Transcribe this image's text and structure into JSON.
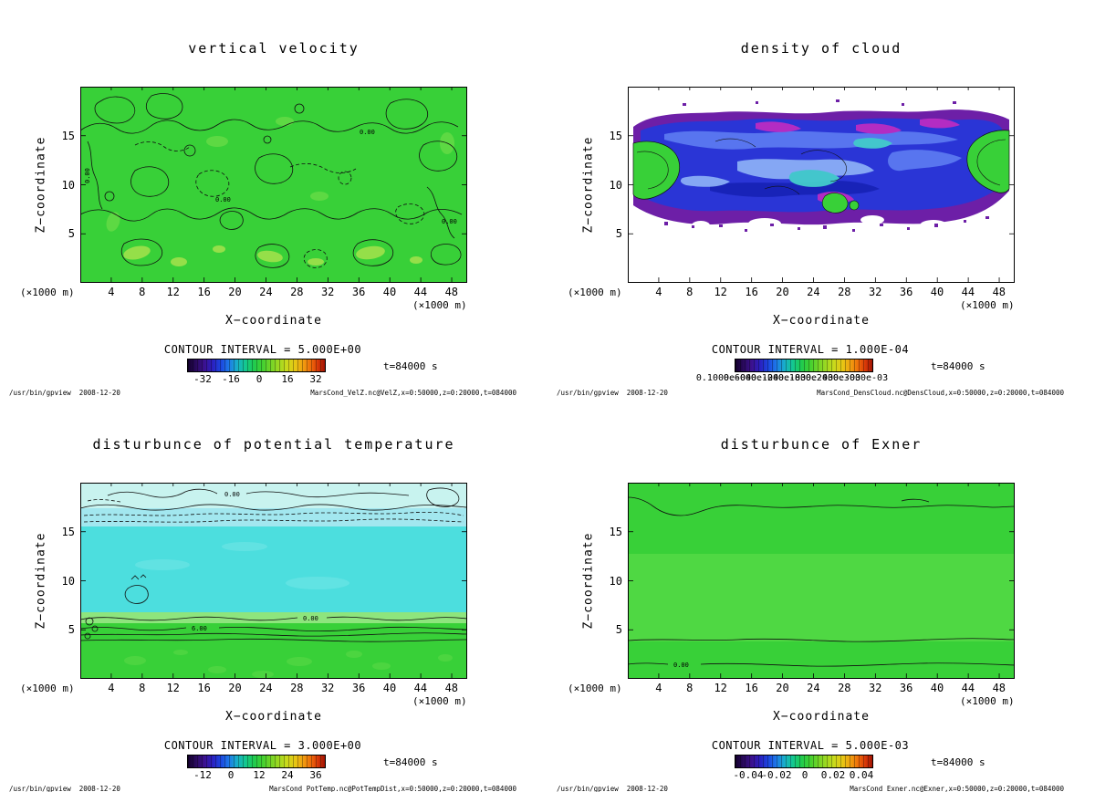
{
  "app": {
    "name": "gpview output",
    "stamp": "/usr/bin/gpview  2008-12-20"
  },
  "palette": {
    "background": "#ffffff",
    "field_green": "#38d038",
    "field_green_light": "#a6e24c",
    "field_cyan": "#4cdede",
    "field_pale_cyan": "#c8f3ef",
    "cloud_purple": "#6d1fa7",
    "cloud_blue": "#2a35d6",
    "cloud_light_blue": "#5d7df2",
    "cloud_magenta": "#c22cc2",
    "contour_black": "#101010",
    "colorbar_gradient": [
      "#14002e",
      "#2a20c0",
      "#1e7ae8",
      "#14c890",
      "#3ed032",
      "#9cd822",
      "#e6c814",
      "#ee6a0a",
      "#a01404"
    ]
  },
  "panels": [
    {
      "title": "vertical velocity",
      "y_label": "Z−coordinate",
      "x_label": "X−coordinate",
      "unit_left": "(×1000 m)",
      "unit_right": "(×1000 m)",
      "y_ticks": [
        "15",
        "10",
        "5"
      ],
      "x_ticks": [
        "4",
        "8",
        "12",
        "16",
        "20",
        "24",
        "28",
        "32",
        "36",
        "40",
        "44",
        "48"
      ],
      "contour_interval_label": "CONTOUR INTERVAL = 5.000E+00",
      "colorbar_labels": [
        "-32",
        "-16",
        "0",
        "16",
        "32"
      ],
      "time_label": "t=84000 s",
      "contour_labels": [
        "0.00",
        "0.00",
        "0.00",
        "0.00"
      ],
      "footer_left": "/usr/bin/gpview  2008-12-20",
      "footer_right": "MarsCond_VelZ.nc@VelZ,x=0:50000,z=0:20000,t=084000"
    },
    {
      "title": "density of cloud",
      "y_label": "Z−coordinate",
      "x_label": "X−coordinate",
      "unit_left": "(×1000 m)",
      "unit_right": "(×1000 m)",
      "y_ticks": [
        "15",
        "10",
        "5"
      ],
      "x_ticks": [
        "4",
        "8",
        "12",
        "16",
        "20",
        "24",
        "28",
        "32",
        "36",
        "40",
        "44",
        "48"
      ],
      "contour_interval_label": "CONTOUR INTERVAL = 1.000E-04",
      "colorbar_labels": [
        "0.1000e-04",
        "0.6000e-04",
        "0.1200e-03",
        "0.1800e-03",
        "0.2400e-03",
        "0.3000e-03"
      ],
      "time_label": "t=84000 s",
      "contour_labels": [],
      "footer_left": "/usr/bin/gpview  2008-12-20",
      "footer_right": "MarsCond_DensCloud.nc@DensCloud,x=0:50000,z=0:20000,t=084000"
    },
    {
      "title": "disturbunce of potential temperature",
      "y_label": "Z−coordinate",
      "x_label": "X−coordinate",
      "unit_left": "(×1000 m)",
      "unit_right": "(×1000 m)",
      "y_ticks": [
        "15",
        "10",
        "5"
      ],
      "x_ticks": [
        "4",
        "8",
        "12",
        "16",
        "20",
        "24",
        "28",
        "32",
        "36",
        "40",
        "44",
        "48"
      ],
      "contour_interval_label": "CONTOUR INTERVAL = 3.000E+00",
      "colorbar_labels": [
        "-12",
        "0",
        "12",
        "24",
        "36"
      ],
      "time_label": "t=84000 s",
      "contour_labels": [
        "0.00",
        "0.00",
        "6.00"
      ],
      "footer_left": "/usr/bin/gpview  2008-12-20",
      "footer_right": "MarsCond_PotTemp.nc@PotTempDist,x=0:50000,z=0:20000,t=084000"
    },
    {
      "title": "disturbunce of Exner",
      "y_label": "Z−coordinate",
      "x_label": "X−coordinate",
      "unit_left": "(×1000 m)",
      "unit_right": "(×1000 m)",
      "y_ticks": [
        "15",
        "10",
        "5"
      ],
      "x_ticks": [
        "4",
        "8",
        "12",
        "16",
        "20",
        "24",
        "28",
        "32",
        "36",
        "40",
        "44",
        "48"
      ],
      "contour_interval_label": "CONTOUR INTERVAL = 5.000E-03",
      "colorbar_labels": [
        "-0.04",
        "-0.02",
        "0",
        "0.02",
        "0.04"
      ],
      "time_label": "t=84000 s",
      "contour_labels": [
        "0.00"
      ],
      "footer_left": "/usr/bin/gpview  2008-12-20",
      "footer_right": "MarsCond_Exner.nc@Exner,x=0:50000,z=0:20000,t=084000"
    }
  ],
  "chart_data": [
    {
      "type": "heatmap",
      "panel": "top-left",
      "title": "vertical velocity",
      "xlabel": "X-coordinate (×1000 m)",
      "ylabel": "Z-coordinate (×1000 m)",
      "xlim": [
        0,
        50
      ],
      "ylim": [
        0,
        20
      ],
      "x_ticks": [
        4,
        8,
        12,
        16,
        20,
        24,
        28,
        32,
        36,
        40,
        44,
        48
      ],
      "y_ticks": [
        5,
        10,
        15
      ],
      "contour_interval": 5.0,
      "colorbar_ticks": [
        -32,
        -16,
        0,
        16,
        32
      ],
      "colorbar_range": [
        -40,
        40
      ],
      "time_s": 84000,
      "source": "MarsCond_VelZ.nc@VelZ,x=0:50000,z=0:20000,t=084000",
      "field_description": "Field nearly uniform near 0 m/s (solid green) over the whole domain; dense irregular 0-level contour squiggles (solid and dashed) everywhere; weak positive cells (~+5, yellow-green elongated patches) concentrated along the bottom boundary and a few aloft."
    },
    {
      "type": "heatmap",
      "panel": "top-right",
      "title": "density of cloud",
      "xlabel": "X-coordinate (×1000 m)",
      "ylabel": "Z-coordinate (×1000 m)",
      "xlim": [
        0,
        50
      ],
      "ylim": [
        0,
        20
      ],
      "x_ticks": [
        4,
        8,
        12,
        16,
        20,
        24,
        28,
        32,
        36,
        40,
        44,
        48
      ],
      "y_ticks": [
        5,
        10,
        15
      ],
      "contour_interval": 0.0001,
      "colorbar_ticks": [
        1e-05,
        6e-05,
        0.00012,
        0.00018,
        0.00024,
        0.0003
      ],
      "colorbar_tick_labels_overlapping": true,
      "time_s": 84000,
      "source": "MarsCond_DensCloud.nc@DensCloud,x=0:50000,z=0:20000,t=084000",
      "field_description": "Cloud density confined to a layer between z≈5.5 and z≈17.5; zero (white) above and below. Layer rim is purple (lowest values) with a turbulent deep-blue interior, lighter blue/cyan swirls, magenta wisps near the top, and green high-density patches hugging the left and right boundaries; ragged speckled edges."
    },
    {
      "type": "heatmap",
      "panel": "bottom-left",
      "title": "disturbunce of potential temperature",
      "xlabel": "X-coordinate (×1000 m)",
      "ylabel": "Z-coordinate (×1000 m)",
      "xlim": [
        0,
        50
      ],
      "ylim": [
        0,
        20
      ],
      "x_ticks": [
        4,
        8,
        12,
        16,
        20,
        24,
        28,
        32,
        36,
        40,
        44,
        48
      ],
      "y_ticks": [
        5,
        10,
        15
      ],
      "contour_interval": 3.0,
      "colorbar_ticks": [
        -12,
        0,
        12,
        24,
        36
      ],
      "time_s": 84000,
      "source": "MarsCond_PotTemp.nc@PotTempDist,x=0:50000,z=0:20000,t=084000",
      "field_description": "Horizontally stratified disturbance: pale cyan uppermost band (z≈17.5-20) with wiggly 0.00 contours, dashed negative contours near z≈16-17, uniform bright cyan mid-layer (z≈6-15.5, slightly negative), sharply packed near-surface contours at z≈3.5-5.5 labelled 6.00 and 0.00, green positive layer below; small closed contours near x≈7, z≈9."
    },
    {
      "type": "heatmap",
      "panel": "bottom-right",
      "title": "disturbunce of Exner",
      "xlabel": "X-coordinate (×1000 m)",
      "ylabel": "Z-coordinate (×1000 m)",
      "xlim": [
        0,
        50
      ],
      "ylim": [
        0,
        20
      ],
      "x_ticks": [
        4,
        8,
        12,
        16,
        20,
        24,
        28,
        32,
        36,
        40,
        44,
        48
      ],
      "y_ticks": [
        5,
        10,
        15
      ],
      "contour_interval": 0.005,
      "colorbar_ticks": [
        -0.04,
        -0.02,
        0,
        0.02,
        0.04
      ],
      "time_s": 84000,
      "source": "MarsCond_Exner.nc@Exner,x=0:50000,z=0:20000,t=084000",
      "field_description": "Nearly uniform field close to 0 (green everywhere): one 0-contour running along z≈17.5 across the domain with a dip near the left edge, a faint band boundary at z≈13 and z≈4 (slightly lighter green in between), and a near-surface contour around z≈1.5 labelled 0.00."
    }
  ]
}
